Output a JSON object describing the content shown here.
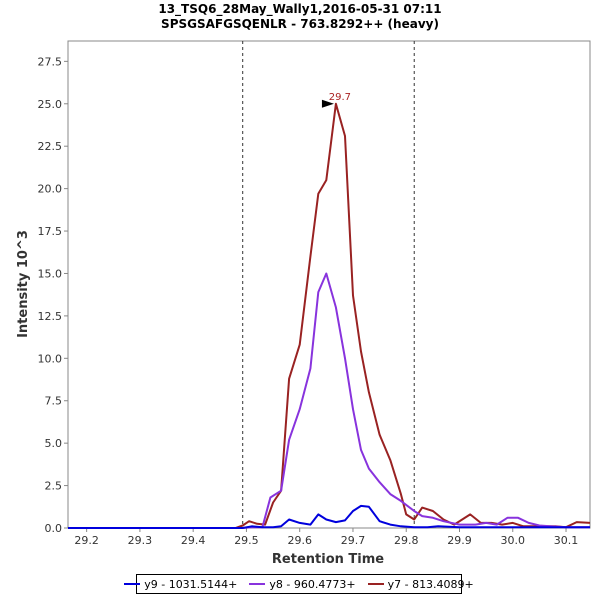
{
  "chart_data": {
    "type": "line",
    "title_line1": "13_TSQ6_28May_Wally1,2016-05-31 07:11",
    "title_line2": "SPSGSAFGSQENLR - 763.8292++ (heavy)",
    "xlabel": "Retention Time",
    "ylabel": "Intensity 10^3",
    "xlim": [
      29.165,
      30.145
    ],
    "ylim": [
      0,
      28.7
    ],
    "x_ticks": [
      29.2,
      29.3,
      29.4,
      29.5,
      29.6,
      29.7,
      29.8,
      29.9,
      30.0,
      30.1
    ],
    "x_tick_labels": [
      "29.2",
      "29.3",
      "29.4",
      "29.5",
      "29.6",
      "29.7",
      "29.8",
      "29.9",
      "30.0",
      "30.1"
    ],
    "y_ticks": [
      0,
      2.5,
      5.0,
      7.5,
      10.0,
      12.5,
      15.0,
      17.5,
      20.0,
      22.5,
      25.0,
      27.5
    ],
    "y_tick_labels": [
      "0.0",
      "2.5",
      "5.0",
      "7.5",
      "10.0",
      "12.5",
      "15.0",
      "17.5",
      "20.0",
      "22.5",
      "25.0",
      "27.5"
    ],
    "boundaries": [
      29.493,
      29.815
    ],
    "peak_annotation": {
      "x": 29.668,
      "y": 25.0,
      "label": "29.7",
      "color": "#aa2222"
    },
    "series": [
      {
        "name": "y9 - 1031.5144+",
        "color": "#0000dd",
        "x": [
          29.165,
          29.48,
          29.493,
          29.51,
          29.53,
          29.55,
          29.565,
          29.58,
          29.6,
          29.62,
          29.635,
          29.65,
          29.668,
          29.685,
          29.7,
          29.715,
          29.73,
          29.75,
          29.77,
          29.79,
          29.815,
          29.84,
          29.86,
          29.9,
          29.95,
          30.0,
          30.05,
          30.1,
          30.145
        ],
        "y": [
          0,
          0,
          0,
          0.1,
          0.05,
          0.05,
          0.1,
          0.5,
          0.3,
          0.2,
          0.8,
          0.5,
          0.35,
          0.45,
          1.0,
          1.3,
          1.25,
          0.4,
          0.2,
          0.1,
          0.05,
          0.05,
          0.1,
          0.05,
          0.05,
          0.05,
          0.05,
          0.05,
          0.05
        ]
      },
      {
        "name": "y8 - 960.4773+",
        "color": "#8833dd",
        "x": [
          29.165,
          29.48,
          29.493,
          29.51,
          29.53,
          29.545,
          29.565,
          29.58,
          29.6,
          29.62,
          29.635,
          29.65,
          29.668,
          29.685,
          29.7,
          29.715,
          29.73,
          29.75,
          29.77,
          29.79,
          29.815,
          29.83,
          29.85,
          29.87,
          29.9,
          29.93,
          29.95,
          29.97,
          29.99,
          30.01,
          30.03,
          30.05,
          30.07,
          30.1,
          30.145
        ],
        "y": [
          0,
          0,
          0,
          0.05,
          0.05,
          1.8,
          2.2,
          5.2,
          7.0,
          9.4,
          13.9,
          15.0,
          13.0,
          10.0,
          7.0,
          4.6,
          3.5,
          2.7,
          2.0,
          1.6,
          1.0,
          0.7,
          0.6,
          0.4,
          0.2,
          0.2,
          0.3,
          0.2,
          0.6,
          0.6,
          0.3,
          0.15,
          0.1,
          0.05,
          0.05
        ]
      },
      {
        "name": "y7 - 813.4089+",
        "color": "#992222",
        "x": [
          29.165,
          29.48,
          29.493,
          29.505,
          29.52,
          29.535,
          29.55,
          29.565,
          29.58,
          29.6,
          29.62,
          29.635,
          29.65,
          29.668,
          29.685,
          29.7,
          29.715,
          29.73,
          29.75,
          29.77,
          29.79,
          29.8,
          29.815,
          29.83,
          29.85,
          29.87,
          29.89,
          29.92,
          29.94,
          29.96,
          29.98,
          30.0,
          30.02,
          30.05,
          30.08,
          30.1,
          30.12,
          30.145
        ],
        "y": [
          0,
          0,
          0.15,
          0.4,
          0.25,
          0.2,
          1.5,
          2.2,
          8.8,
          10.8,
          16.0,
          19.7,
          20.5,
          25.0,
          23.1,
          13.7,
          10.4,
          8.0,
          5.5,
          4.0,
          2.0,
          0.8,
          0.5,
          1.2,
          1.0,
          0.5,
          0.2,
          0.8,
          0.3,
          0.3,
          0.2,
          0.3,
          0.1,
          0.1,
          0.1,
          0.05,
          0.35,
          0.3
        ]
      }
    ]
  }
}
